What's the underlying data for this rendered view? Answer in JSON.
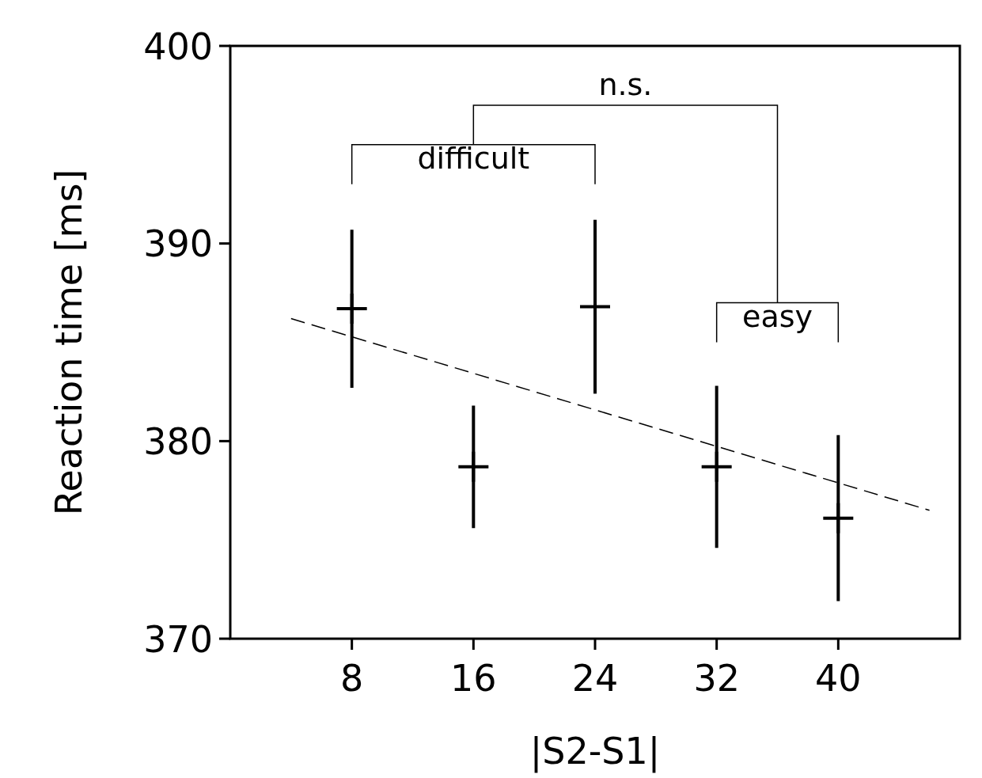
{
  "chart_data": {
    "type": "scatter",
    "xlabel": "|S2-S1|",
    "ylabel": "Reaction time [ms]",
    "x": [
      8,
      16,
      24,
      32,
      40
    ],
    "xlim": [
      0,
      48
    ],
    "xticks": [
      8,
      16,
      24,
      32,
      40
    ],
    "ylim": [
      370,
      400
    ],
    "yticks": [
      370,
      380,
      390,
      400
    ],
    "grid": false,
    "series": [
      {
        "type": "scatter",
        "color": "#000000",
        "marker": "cross",
        "values": [
          386.7,
          378.7,
          386.8,
          378.7,
          376.1
        ],
        "errors": [
          4.0,
          3.1,
          4.4,
          4.1,
          4.2
        ]
      },
      {
        "type": "line",
        "color": "#000000",
        "line_style": "dashed",
        "marker": "none",
        "x": [
          4,
          46
        ],
        "values": [
          386.2,
          376.5
        ]
      }
    ],
    "annotations": [
      "difficult",
      "easy",
      "n.s."
    ]
  }
}
